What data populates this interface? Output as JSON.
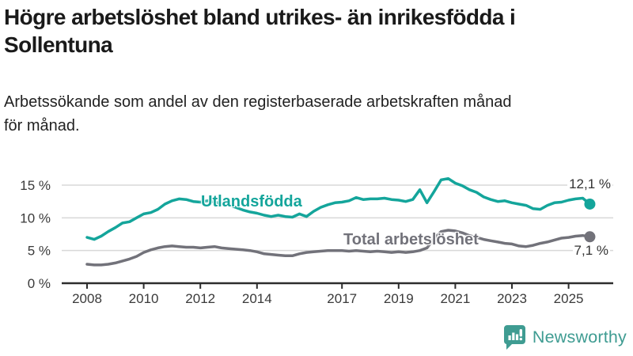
{
  "header": {
    "title_line1": "Högre arbetslöshet bland utrikes- än inrikesfödda i",
    "title_line2": "Sollentuna",
    "subtitle_line1": "Arbetssökande som andel av den registerbaserade arbetskraften månad",
    "subtitle_line2": "för månad."
  },
  "chart_data": {
    "type": "line",
    "title": "Högre arbetslöshet bland utrikes- än inrikesfödda i Sollentuna",
    "subtitle": "Arbetssökande som andel av den registerbaserade arbetskraften månad för månad.",
    "xlabel": "",
    "ylabel": "",
    "x_unit": "decimal_year_monthly_series",
    "xlim": [
      2008,
      2025.75
    ],
    "ylim": [
      0,
      16.5
    ],
    "grid": "horizontal",
    "legend": "inline-labels",
    "yticks": [
      {
        "value": 0,
        "label": "0 %"
      },
      {
        "value": 5,
        "label": "5 %"
      },
      {
        "value": 10,
        "label": "10 %"
      },
      {
        "value": 15,
        "label": "15 %"
      }
    ],
    "xticks": [
      {
        "value": 2008,
        "label": "2008"
      },
      {
        "value": 2010,
        "label": "2010"
      },
      {
        "value": 2012,
        "label": "2012"
      },
      {
        "value": 2014,
        "label": "2014"
      },
      {
        "value": 2017,
        "label": "2017"
      },
      {
        "value": 2019,
        "label": "2019"
      },
      {
        "value": 2021,
        "label": "2021"
      },
      {
        "value": 2023,
        "label": "2023"
      },
      {
        "value": 2025,
        "label": "2025"
      }
    ],
    "x": [
      2008,
      2008.25,
      2008.5,
      2008.75,
      2009,
      2009.25,
      2009.5,
      2009.75,
      2010,
      2010.25,
      2010.5,
      2010.75,
      2011,
      2011.25,
      2011.5,
      2011.75,
      2012,
      2012.25,
      2012.5,
      2012.75,
      2013,
      2013.25,
      2013.5,
      2013.75,
      2014,
      2014.25,
      2014.5,
      2014.75,
      2015,
      2015.25,
      2015.5,
      2015.75,
      2016,
      2016.25,
      2016.5,
      2016.75,
      2017,
      2017.25,
      2017.5,
      2017.75,
      2018,
      2018.25,
      2018.5,
      2018.75,
      2019,
      2019.25,
      2019.5,
      2019.75,
      2020,
      2020.25,
      2020.5,
      2020.75,
      2021,
      2021.25,
      2021.5,
      2021.75,
      2022,
      2022.25,
      2022.5,
      2022.75,
      2023,
      2023.25,
      2023.5,
      2023.75,
      2024,
      2024.25,
      2024.5,
      2024.75,
      2025,
      2025.25,
      2025.5,
      2025.75
    ],
    "series": [
      {
        "name": "Utlandsfödda",
        "color": "#14a59b",
        "end_label": "12,1 %",
        "end_value": 12.1,
        "values": [
          7.0,
          6.7,
          7.2,
          7.9,
          8.5,
          9.2,
          9.4,
          10.0,
          10.6,
          10.8,
          11.3,
          12.1,
          12.6,
          12.9,
          12.8,
          12.5,
          12.4,
          12.6,
          12.4,
          12.2,
          12.0,
          11.6,
          11.2,
          10.9,
          10.7,
          10.4,
          10.2,
          10.4,
          10.2,
          10.1,
          10.6,
          10.2,
          11.0,
          11.6,
          12.0,
          12.3,
          12.4,
          12.6,
          13.1,
          12.8,
          12.9,
          12.9,
          13.0,
          12.8,
          12.7,
          12.5,
          12.8,
          14.3,
          12.3,
          14.0,
          15.8,
          16.0,
          15.3,
          14.9,
          14.3,
          13.9,
          13.2,
          12.8,
          12.5,
          12.6,
          12.3,
          12.1,
          11.9,
          11.4,
          11.3,
          11.9,
          12.3,
          12.4,
          12.7,
          12.9,
          13.0,
          12.1
        ]
      },
      {
        "name": "Total arbetslöshet",
        "color": "#72727a",
        "end_label": "7,1 %",
        "end_value": 7.1,
        "values": [
          2.9,
          2.8,
          2.8,
          2.9,
          3.1,
          3.4,
          3.7,
          4.1,
          4.7,
          5.1,
          5.4,
          5.6,
          5.7,
          5.6,
          5.5,
          5.5,
          5.4,
          5.5,
          5.6,
          5.4,
          5.3,
          5.2,
          5.1,
          5.0,
          4.8,
          4.5,
          4.4,
          4.3,
          4.2,
          4.2,
          4.5,
          4.7,
          4.8,
          4.9,
          5.0,
          5.0,
          5.0,
          4.9,
          5.0,
          4.9,
          4.8,
          4.9,
          4.8,
          4.7,
          4.8,
          4.7,
          4.8,
          5.0,
          5.4,
          6.8,
          7.9,
          8.1,
          8.0,
          7.7,
          7.3,
          7.0,
          6.7,
          6.5,
          6.3,
          6.1,
          6.0,
          5.7,
          5.6,
          5.8,
          6.1,
          6.3,
          6.6,
          6.9,
          7.0,
          7.2,
          7.3,
          7.1
        ]
      }
    ]
  },
  "footer": {
    "brand": "Newsworthy",
    "brand_color": "#3f9c92",
    "logo_icon": "bar-chart-speech-bubble-icon"
  },
  "colors": {
    "title_text": "#1a1a1a",
    "subtitle_text": "#222222",
    "gridline": "#d8d8d8",
    "axis": "#2d2d2d",
    "tick_label": "#3a3a3a",
    "end_label_text": "#333333",
    "background": "#ffffff"
  }
}
